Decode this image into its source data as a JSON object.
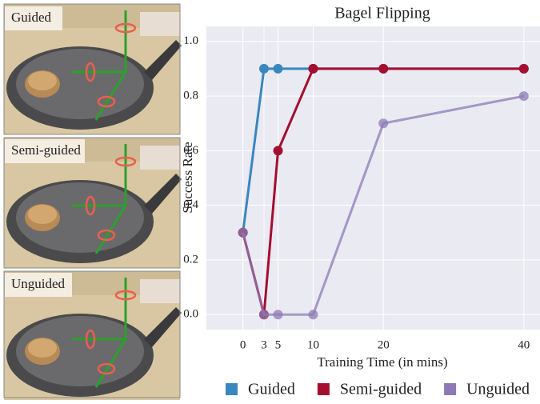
{
  "image_panels": [
    {
      "label": "Guided"
    },
    {
      "label": "Semi-guided"
    },
    {
      "label": "Unguided"
    }
  ],
  "chart_data": {
    "type": "line",
    "title": "Bagel Flipping",
    "x_label": "Training Time (in mins)",
    "y_label": "Success Rate",
    "x": [
      0,
      3,
      5,
      10,
      20,
      40
    ],
    "series": [
      {
        "name": "Guided",
        "color": "#3a87bf",
        "values": [
          0.3,
          0.9,
          0.9,
          0.9,
          0.9,
          0.9
        ]
      },
      {
        "name": "Semi-guided",
        "color": "#a50f2f",
        "values": [
          0.3,
          0,
          0.6,
          0.9,
          0.9,
          0.9
        ]
      },
      {
        "name": "Unguided",
        "color": "#8c79b5",
        "values": [
          0.3,
          0,
          0,
          0,
          0.7,
          0.8
        ]
      }
    ],
    "xlim": [
      -5.2,
      42.3
    ],
    "ylim": [
      -0.055,
      1.055
    ],
    "xticks": [
      0,
      3,
      5,
      10,
      20,
      40
    ],
    "yticks": [
      {
        "value": 0,
        "label": "0.0"
      },
      0.2,
      0.4,
      0.6,
      0.8,
      {
        "value": 1,
        "label": "1.0"
      }
    ],
    "grid": true,
    "legend": "bottom"
  }
}
